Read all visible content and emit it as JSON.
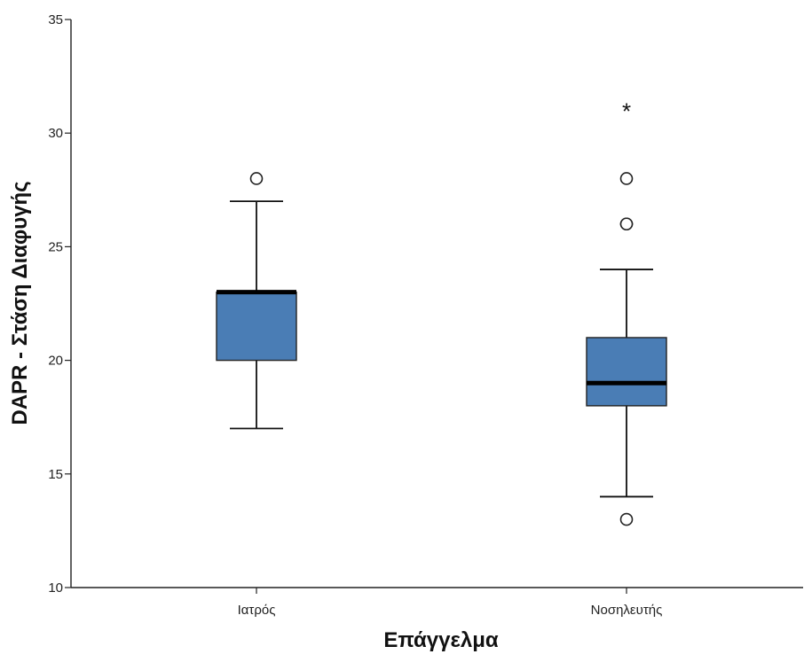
{
  "chart_data": {
    "type": "box",
    "title": "",
    "xlabel": "Επάγγελμα",
    "ylabel": "DAPR - Στάση Διαφυγής",
    "ylim": [
      10,
      35
    ],
    "yticks": [
      "10",
      "15",
      "20",
      "25",
      "30",
      "35"
    ],
    "grid": false,
    "categories": [
      "Ιατρός",
      "Νοσηλευτής"
    ],
    "box_color": "#4a7db5",
    "boxes": [
      {
        "category": "Ιατρός",
        "whisker_low": 17,
        "q1": 20,
        "median": 23,
        "q3": 23,
        "whisker_high": 27,
        "outliers": [
          28
        ],
        "extremes": []
      },
      {
        "category": "Νοσηλευτής",
        "whisker_low": 14,
        "q1": 18,
        "median": 19,
        "q3": 21,
        "whisker_high": 24,
        "outliers": [
          13,
          26,
          26,
          28
        ],
        "extremes": [
          31
        ]
      }
    ]
  }
}
